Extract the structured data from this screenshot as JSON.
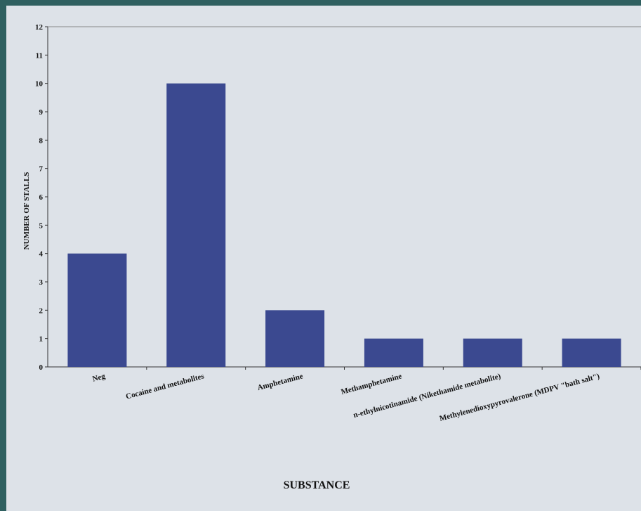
{
  "chart_data": {
    "type": "bar",
    "categories": [
      "Neg",
      "Cocaine and metabolites",
      "Amphetamine",
      "Methamphetamine",
      "n-ethylnicotinamide (Nikethamide metabolite)",
      "Methylenedioxypyrovalerone (MDPV \"bath salt\")"
    ],
    "values": [
      4,
      10,
      2,
      1,
      1,
      1
    ],
    "xlabel": "SUBSTANCE",
    "ylabel": "NUMBER OF STALLS",
    "ylim": [
      0,
      12
    ],
    "yticks": [
      0,
      1,
      2,
      3,
      4,
      5,
      6,
      7,
      8,
      9,
      10,
      11,
      12
    ],
    "grid": false,
    "bar_color": "#3b4990"
  }
}
